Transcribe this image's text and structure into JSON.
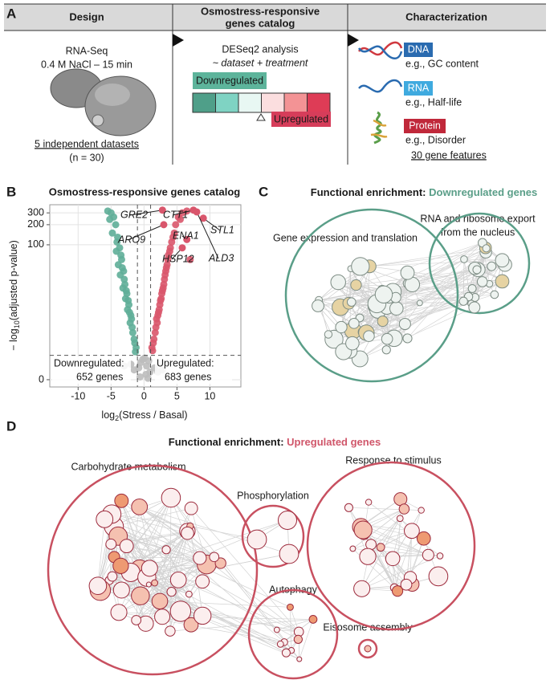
{
  "panel_labels": [
    "A",
    "B",
    "C",
    "D"
  ],
  "panel_a": {
    "headers": [
      [
        "Design"
      ],
      [
        "Osmostress-responsive",
        "genes catalog"
      ],
      [
        "Characterization"
      ]
    ],
    "design": {
      "lines": [
        "RNA-Seq",
        "0.4 M NaCl – 15 min"
      ],
      "datasets": "5 independent datasets",
      "n": "(n = 30)"
    },
    "catalog": {
      "method": "DESeq2 analysis",
      "formula": "~ dataset + treatment",
      "down": "Downregulated",
      "up": "Upregulated"
    },
    "characterization": {
      "features": [
        {
          "tag": "DNA",
          "example": "e.g., GC content"
        },
        {
          "tag": "RNA",
          "example": "e.g., Half-life"
        },
        {
          "tag": "Protein",
          "example": "e.g., Disorder"
        }
      ],
      "total": "30 gene features"
    }
  },
  "chart_data": {
    "type": "scatter",
    "title": "Osmostress-responsive genes catalog",
    "x_label": {
      "prefix": "log",
      "sub": "2",
      "suffix": "(Stress / Basal)"
    },
    "y_label": {
      "prefix": "− log",
      "sub": "10",
      "suffix": "(adjusted p-value)"
    },
    "xlim": [
      -14.3,
      14.7
    ],
    "ylim": [
      -0.22,
      397
    ],
    "yscale": "log10(y+1)",
    "xticks": [
      -10,
      -5,
      0,
      5,
      10
    ],
    "yticks": [
      0,
      100,
      200,
      300
    ],
    "grid": true,
    "thresholds": {
      "x": [
        -1,
        1
      ],
      "y": 1.3
    },
    "series": [
      {
        "color": "#5fae98",
        "x": [
          -1.2,
          -1.5,
          -1.8,
          -2.0,
          -2.3,
          -2.6,
          -2.9,
          -3.1,
          -3.4,
          -3.7,
          -4.0,
          -4.3,
          -4.6,
          -5.0,
          -5.5,
          -1.3,
          -1.7,
          -2.1,
          -2.5,
          -2.8,
          -3.2,
          -3.6,
          -3.9,
          -4.2,
          -4.8,
          -1.4,
          -1.9,
          -2.4,
          -3.0,
          -3.5,
          -4.1,
          -5.2,
          -2.2,
          -2.7,
          -3.3
        ],
        "values": [
          2,
          3,
          5,
          8,
          12,
          18,
          25,
          40,
          60,
          90,
          130,
          200,
          260,
          300,
          320,
          1.6,
          4,
          6,
          10,
          15,
          22,
          35,
          50,
          80,
          150,
          2.5,
          7,
          14,
          30,
          70,
          110,
          240,
          9,
          20,
          45
        ]
      },
      {
        "color": "#d9566c",
        "x": [
          1.2,
          1.5,
          1.8,
          2.1,
          2.4,
          2.7,
          3.0,
          3.3,
          3.6,
          4.0,
          4.4,
          4.8,
          5.2,
          5.8,
          6.5,
          1.3,
          1.7,
          2.0,
          2.3,
          2.6,
          2.9,
          3.2,
          3.5,
          3.9,
          4.6,
          1.4,
          1.9,
          2.5,
          3.1,
          3.7,
          4.2,
          5.5,
          2.2,
          2.8,
          3.4,
          7.0
        ],
        "values": [
          2,
          3,
          5,
          8,
          12,
          18,
          25,
          40,
          60,
          90,
          130,
          200,
          260,
          300,
          320,
          1.7,
          4,
          6,
          10,
          15,
          22,
          35,
          50,
          80,
          150,
          2.5,
          7,
          14,
          30,
          70,
          110,
          240,
          9,
          20,
          45,
          60
        ]
      },
      {
        "color": "#bdbdbd",
        "x": [
          -0.8,
          -0.5,
          -0.2,
          0.1,
          0.4,
          0.7,
          0.9,
          -1.5,
          -2.0,
          1.6,
          2.1,
          -0.6,
          0.3,
          0.6,
          -3.0,
          2.8
        ],
        "values": [
          0.5,
          0.8,
          1.0,
          1.1,
          0.6,
          0.9,
          0.3,
          0.4,
          0.7,
          0.5,
          0.3,
          0.1,
          0.2,
          0.05,
          0.6,
          0.4
        ]
      }
    ],
    "gene_labels": [
      {
        "text": "GRE2",
        "x": 2.8,
        "y": 330
      },
      {
        "text": "CTT1",
        "x": 7.5,
        "y": 330
      },
      {
        "text": "STL1",
        "x": 9,
        "y": 250
      },
      {
        "text": "ARO9",
        "x": 3,
        "y": 200
      },
      {
        "text": "ENA1",
        "x": 6.5,
        "y": 120
      },
      {
        "text": "HSP12",
        "x": 5.8,
        "y": 90
      },
      {
        "text": "ALD3",
        "x": 8,
        "y": 310
      }
    ],
    "annotations": [
      {
        "lines": [
          "Downregulated:",
          "652 genes"
        ]
      },
      {
        "lines": [
          "Upregulated:",
          "683 genes"
        ]
      }
    ]
  },
  "panel_c": {
    "title_prefix": "Functional enrichment:",
    "title_highlight": "Downregulated genes",
    "clusters": [
      [
        "Gene expression and translation"
      ],
      [
        "RNA and ribosome export",
        "from the nucleus"
      ]
    ]
  },
  "panel_d": {
    "title_prefix": "Functional enrichment:",
    "title_highlight": "Upregulated genes",
    "clusters": [
      "Carbohydrate metabolism",
      "Phosphorylation",
      "Response to stimulus",
      "Autophagy",
      "Eisosome assembly"
    ]
  }
}
